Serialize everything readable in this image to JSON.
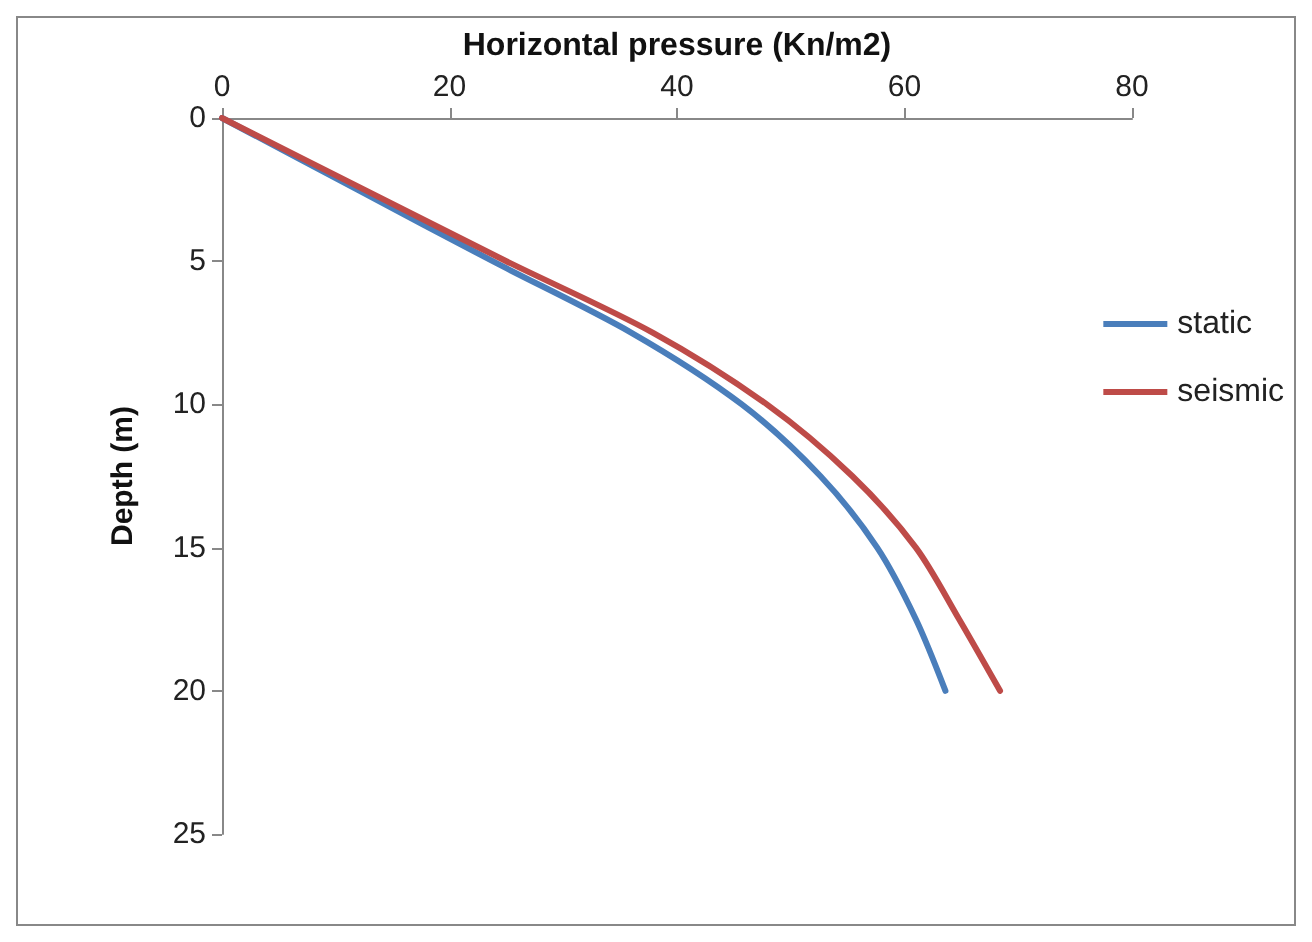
{
  "chart_data": {
    "type": "line",
    "xlabel": "Horizontal pressure (Kn/m2)",
    "ylabel": "Depth (m)",
    "xlim": [
      0,
      80
    ],
    "xticks": [
      0,
      20,
      40,
      60,
      80
    ],
    "ylim": [
      25,
      0
    ],
    "yticks": [
      0,
      5,
      10,
      15,
      20,
      25
    ],
    "grid": false,
    "legend": "right",
    "marker": "none",
    "line_style": "solid",
    "series": [
      {
        "name": "static",
        "color": "#4a7ebb",
        "x": [
          0,
          11.9,
          23.8,
          36.0,
          45.7,
          52.6,
          57.6,
          61.0,
          63.6
        ],
        "values": [
          0,
          2.5,
          5,
          7.5,
          10,
          12.5,
          15,
          17.5,
          20
        ]
      },
      {
        "name": "seismic",
        "color": "#be4b48",
        "x": [
          0,
          12.5,
          25.0,
          37.9,
          47.9,
          55.4,
          61.0,
          64.8,
          68.4
        ],
        "values": [
          0,
          2.5,
          5,
          7.5,
          10,
          12.5,
          15,
          17.5,
          20
        ]
      }
    ]
  }
}
